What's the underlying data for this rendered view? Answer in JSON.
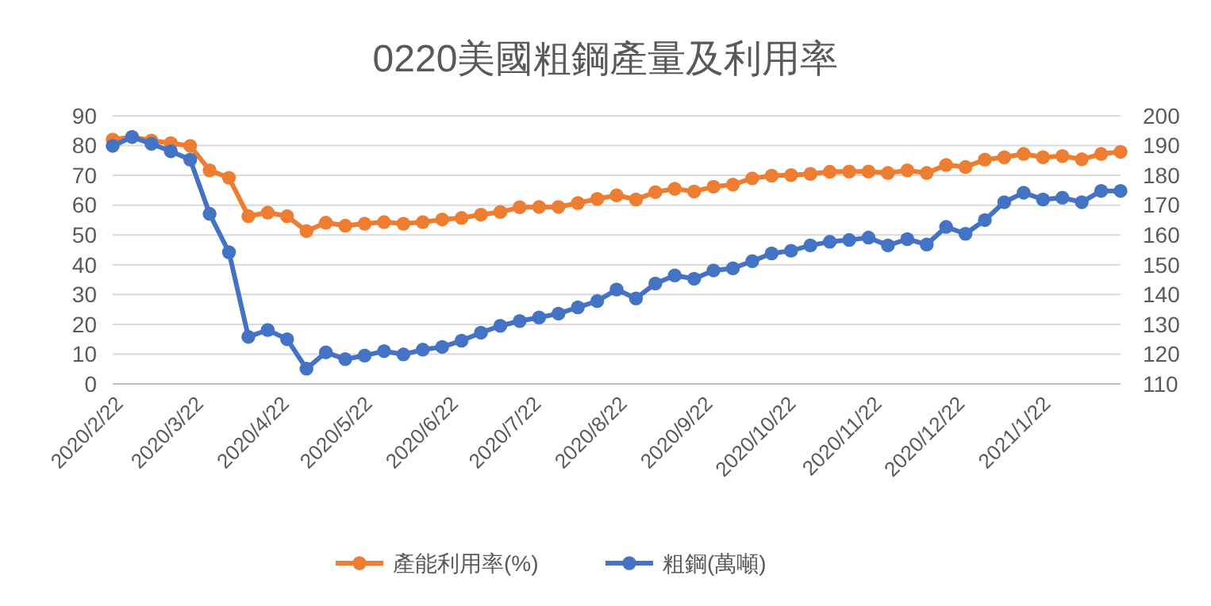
{
  "chart_data": {
    "type": "line",
    "title": "0220美國粗鋼產量及利用率",
    "x": [
      "2020-02-22",
      "2020-02-29",
      "2020-03-07",
      "2020-03-14",
      "2020-03-21",
      "2020-03-28",
      "2020-04-04",
      "2020-04-11",
      "2020-04-18",
      "2020-04-25",
      "2020-05-02",
      "2020-05-09",
      "2020-05-16",
      "2020-05-23",
      "2020-05-30",
      "2020-06-06",
      "2020-06-13",
      "2020-06-20",
      "2020-06-27",
      "2020-07-04",
      "2020-07-11",
      "2020-07-18",
      "2020-07-25",
      "2020-08-01",
      "2020-08-08",
      "2020-08-15",
      "2020-08-22",
      "2020-08-29",
      "2020-09-05",
      "2020-09-12",
      "2020-09-19",
      "2020-09-26",
      "2020-10-03",
      "2020-10-10",
      "2020-10-17",
      "2020-10-24",
      "2020-10-31",
      "2020-11-07",
      "2020-11-14",
      "2020-11-21",
      "2020-11-28",
      "2020-12-05",
      "2020-12-12",
      "2020-12-19",
      "2020-12-26",
      "2021-01-02",
      "2021-01-09",
      "2021-01-16",
      "2021-01-23",
      "2021-01-30",
      "2021-02-06",
      "2021-02-13",
      "2021-02-20"
    ],
    "series": [
      {
        "name": "產能利用率(%)",
        "color": "#ed7d31",
        "values": [
          82.0,
          82.9,
          81.7,
          80.8,
          79.9,
          71.7,
          69.2,
          56.3,
          57.5,
          56.3,
          51.3,
          54.1,
          53.1,
          53.8,
          54.3,
          53.8,
          54.3,
          55.2,
          55.7,
          56.8,
          57.7,
          59.3,
          59.4,
          59.4,
          60.7,
          62.1,
          63.3,
          61.9,
          64.4,
          65.5,
          64.6,
          66.2,
          66.9,
          69.0,
          69.9,
          70.1,
          70.5,
          71.2,
          71.3,
          71.3,
          70.8,
          71.7,
          70.8,
          73.5,
          72.8,
          75.3,
          76.1,
          77.2,
          76.1,
          76.5,
          75.4,
          77.2,
          77.9
        ]
      },
      {
        "name": "粗鋼(萬噸)",
        "color": "#4472c4",
        "axis": "y2",
        "values": [
          189.9,
          192.9,
          190.6,
          188.1,
          185.3,
          167.1,
          154.2,
          125.8,
          128.1,
          125.0,
          115.1,
          120.6,
          118.3,
          119.5,
          121.0,
          119.9,
          121.5,
          122.4,
          124.5,
          127.2,
          129.5,
          131.1,
          132.3,
          133.6,
          135.7,
          137.8,
          141.7,
          138.7,
          143.7,
          146.4,
          145.3,
          148.1,
          148.8,
          151.2,
          153.8,
          154.7,
          156.5,
          157.7,
          158.3,
          159.1,
          156.5,
          158.6,
          156.8,
          162.7,
          160.4,
          165.0,
          171.0,
          174.2,
          171.9,
          172.5,
          171.0,
          174.8,
          174.8
        ]
      }
    ],
    "xlim": [
      "2020-02-22",
      "2021-02-20"
    ],
    "xticks": [
      {
        "value": "2020-02-22",
        "label": "2020/2/22"
      },
      {
        "value": "2020-03-22",
        "label": "2020/3/22"
      },
      {
        "value": "2020-04-22",
        "label": "2020/4/22"
      },
      {
        "value": "2020-05-22",
        "label": "2020/5/22"
      },
      {
        "value": "2020-06-22",
        "label": "2020/6/22"
      },
      {
        "value": "2020-07-22",
        "label": "2020/7/22"
      },
      {
        "value": "2020-08-22",
        "label": "2020/8/22"
      },
      {
        "value": "2020-09-22",
        "label": "2020/9/22"
      },
      {
        "value": "2020-10-22",
        "label": "2020/10/22"
      },
      {
        "value": "2020-11-22",
        "label": "2020/11/22"
      },
      {
        "value": "2020-12-22",
        "label": "2020/12/22"
      },
      {
        "value": "2021-01-22",
        "label": "2021/1/22"
      }
    ],
    "ylim": [
      0,
      90
    ],
    "yticks": [
      0,
      10,
      20,
      30,
      40,
      50,
      60,
      70,
      80,
      90
    ],
    "y2lim": [
      110,
      200
    ],
    "y2ticks": [
      110,
      120,
      130,
      140,
      150,
      160,
      170,
      180,
      190,
      200
    ],
    "grid": "y",
    "legend": "bottom",
    "marker": "circle",
    "line_style": "solid"
  }
}
